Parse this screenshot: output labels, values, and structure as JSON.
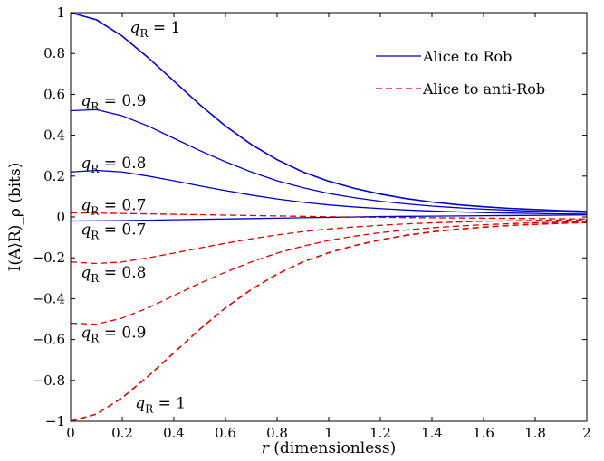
{
  "chart_data": {
    "type": "line",
    "xlabel": "r (dimensionless)",
    "ylabel": "I(A⟩R)_ρ (bits)",
    "xlim": [
      0,
      2
    ],
    "ylim": [
      -1,
      1
    ],
    "xticks": [
      "0",
      "0.2",
      "0.4",
      "0.6",
      "0.8",
      "1",
      "1.2",
      "1.4",
      "1.6",
      "1.8",
      "2"
    ],
    "yticks": [
      "−1",
      "−0.8",
      "−0.6",
      "−0.4",
      "−0.2",
      "0",
      "0.2",
      "0.4",
      "0.6",
      "0.8",
      "1"
    ],
    "x": [
      0,
      0.1,
      0.2,
      0.3,
      0.4,
      0.5,
      0.6,
      0.7,
      0.8,
      0.9,
      1.0,
      1.1,
      1.2,
      1.3,
      1.4,
      1.5,
      1.6,
      1.7,
      1.8,
      1.9,
      2.0
    ],
    "legend": {
      "position": "top-right",
      "entries": [
        "Alice to Rob",
        "Alice to anti-Rob"
      ]
    },
    "series": [
      {
        "group": "Alice to Rob",
        "q": "q_R = 1",
        "color": "#0000cc",
        "style": "solid",
        "values": [
          1.0,
          0.965,
          0.885,
          0.78,
          0.665,
          0.55,
          0.445,
          0.355,
          0.28,
          0.22,
          0.175,
          0.14,
          0.112,
          0.09,
          0.073,
          0.06,
          0.05,
          0.042,
          0.036,
          0.031,
          0.027
        ]
      },
      {
        "group": "Alice to Rob",
        "q": "q_R = 0.9",
        "color": "#0000cc",
        "style": "solid",
        "values": [
          0.52,
          0.525,
          0.495,
          0.445,
          0.385,
          0.325,
          0.27,
          0.22,
          0.177,
          0.143,
          0.115,
          0.094,
          0.077,
          0.064,
          0.053,
          0.045,
          0.038,
          0.033,
          0.028,
          0.025,
          0.022
        ]
      },
      {
        "group": "Alice to Rob",
        "q": "q_R = 0.8",
        "color": "#0000cc",
        "style": "solid",
        "values": [
          0.22,
          0.228,
          0.22,
          0.2,
          0.177,
          0.152,
          0.129,
          0.107,
          0.088,
          0.072,
          0.059,
          0.049,
          0.041,
          0.034,
          0.029,
          0.025,
          0.021,
          0.019,
          0.017,
          0.015,
          0.014
        ]
      },
      {
        "group": "Alice to Rob",
        "q": "q_R = 0.7",
        "color": "#0000cc",
        "style": "solid",
        "values": [
          -0.02,
          -0.019,
          -0.018,
          -0.016,
          -0.014,
          -0.012,
          -0.01,
          -0.008,
          -0.006,
          -0.004,
          -0.002,
          0.0,
          0.002,
          0.003,
          0.004,
          0.005,
          0.006,
          0.007,
          0.008,
          0.009,
          0.01
        ]
      },
      {
        "group": "Alice to anti-Rob",
        "q": "q_R = 0.7",
        "color": "#dd0000",
        "style": "dashed",
        "values": [
          0.02,
          0.019,
          0.017,
          0.015,
          0.013,
          0.011,
          0.009,
          0.007,
          0.005,
          0.003,
          0.001,
          -0.001,
          -0.002,
          -0.003,
          -0.004,
          -0.005,
          -0.006,
          -0.007,
          -0.008,
          -0.009,
          -0.01
        ]
      },
      {
        "group": "Alice to anti-Rob",
        "q": "q_R = 0.8",
        "color": "#dd0000",
        "style": "dashed",
        "values": [
          -0.22,
          -0.228,
          -0.22,
          -0.2,
          -0.177,
          -0.152,
          -0.129,
          -0.107,
          -0.088,
          -0.072,
          -0.059,
          -0.049,
          -0.041,
          -0.034,
          -0.029,
          -0.025,
          -0.021,
          -0.019,
          -0.017,
          -0.015,
          -0.014
        ]
      },
      {
        "group": "Alice to anti-Rob",
        "q": "q_R = 0.9",
        "color": "#dd0000",
        "style": "dashed",
        "values": [
          -0.52,
          -0.525,
          -0.495,
          -0.445,
          -0.385,
          -0.325,
          -0.27,
          -0.22,
          -0.177,
          -0.143,
          -0.115,
          -0.094,
          -0.077,
          -0.064,
          -0.053,
          -0.045,
          -0.038,
          -0.033,
          -0.028,
          -0.025,
          -0.022
        ]
      },
      {
        "group": "Alice to anti-Rob",
        "q": "q_R = 1",
        "color": "#dd0000",
        "style": "dashed",
        "values": [
          -1.0,
          -0.965,
          -0.885,
          -0.78,
          -0.665,
          -0.55,
          -0.445,
          -0.355,
          -0.28,
          -0.22,
          -0.175,
          -0.14,
          -0.112,
          -0.09,
          -0.073,
          -0.06,
          -0.05,
          -0.042,
          -0.036,
          -0.031,
          -0.027
        ]
      }
    ],
    "annotations": [
      {
        "q": "q",
        "sub": "R",
        "rest": " = 1",
        "x": 0.23,
        "y": 0.93
      },
      {
        "q": "q",
        "sub": "R",
        "rest": " = 0.9",
        "x": 0.04,
        "y": 0.57
      },
      {
        "q": "q",
        "sub": "R",
        "rest": " = 0.8",
        "x": 0.04,
        "y": 0.265
      },
      {
        "q": "q",
        "sub": "R",
        "rest": " = 0.7",
        "x": 0.04,
        "y": 0.06
      },
      {
        "q": "q",
        "sub": "R",
        "rest": " = 0.7",
        "x": 0.04,
        "y": -0.06
      },
      {
        "q": "q",
        "sub": "R",
        "rest": " = 0.8",
        "x": 0.04,
        "y": -0.27
      },
      {
        "q": "q",
        "sub": "R",
        "rest": " = 0.9",
        "x": 0.04,
        "y": -0.565
      },
      {
        "q": "q",
        "sub": "R",
        "rest": " = 1",
        "x": 0.25,
        "y": -0.91
      }
    ]
  }
}
